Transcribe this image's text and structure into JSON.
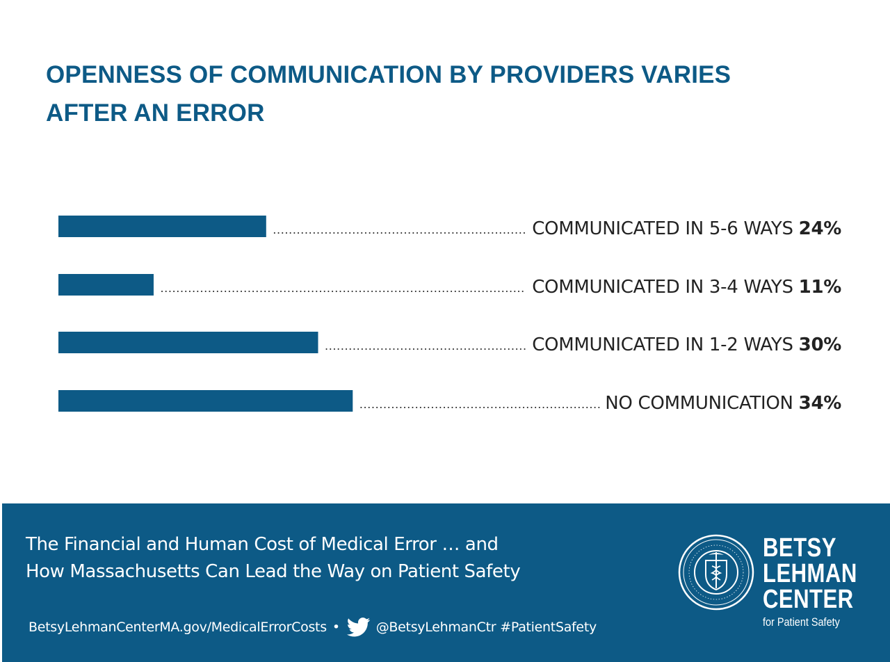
{
  "header": {
    "title_line1": "OPENNESS OF COMMUNICATION BY PROVIDERS VARIES",
    "title_line2": "AFTER AN ERROR"
  },
  "chart_data": {
    "type": "bar",
    "orientation": "horizontal",
    "title": "OPENNESS OF COMMUNICATION BY PROVIDERS VARIES AFTER AN ERROR",
    "categories": [
      "COMMUNICATED IN 5-6 WAYS",
      "COMMUNICATED IN 3-4 WAYS",
      "COMMUNICATED IN 1-2 WAYS",
      "NO COMMUNICATION"
    ],
    "values": [
      24,
      11,
      30,
      34
    ],
    "value_labels": [
      "24%",
      "11%",
      "30%",
      "34%"
    ],
    "unit": "%",
    "xlim": [
      0,
      34
    ],
    "grid": false,
    "legend": "none",
    "bar_color": "#0d5a86"
  },
  "footer": {
    "subtitle_line1": "The Financial and Human Cost of Medical Error … and",
    "subtitle_line2": "How Massachusetts Can Lead the Way on Patient Safety",
    "url": "BetsyLehmanCenterMA.gov/MedicalErrorCosts",
    "bullet": "•",
    "twitter_icon": "twitter-bird-icon",
    "handle": "@BetsyLehmanCtr",
    "hashtag": "#PatientSafety",
    "seal_icon": "massachusetts-seal-icon",
    "brand_line1": "BETSY",
    "brand_line2": "LEHMAN",
    "brand_line3": "CENTER",
    "brand_tagline": "for Patient Safety"
  },
  "colors": {
    "accent": "#0d5a86",
    "text": "#222222",
    "background": "#ffffff"
  }
}
